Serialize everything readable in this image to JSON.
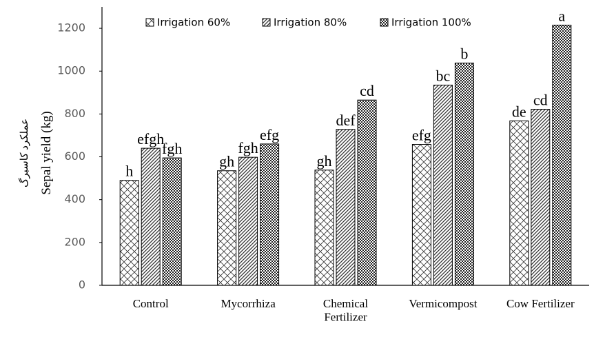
{
  "chart_data": {
    "type": "bar",
    "y_label": [
      "عملکرد کاسبرگ",
      "Sepal yield (kg)"
    ],
    "categories": [
      "Control",
      "Mycorrhiza",
      "Chemical\nFertilizer",
      "Vermicompost",
      "Cow Fertilizer"
    ],
    "series": [
      {
        "name": "Irrigation 60%",
        "values": [
          490,
          535,
          538,
          658,
          768
        ],
        "letters": [
          "h",
          "gh",
          "gh",
          "efg",
          "de"
        ]
      },
      {
        "name": "Irrigation 80%",
        "values": [
          640,
          598,
          728,
          935,
          822
        ],
        "letters": [
          "efgh",
          "fgh",
          "def",
          "bc",
          "cd"
        ]
      },
      {
        "name": "Irrigation 100%",
        "values": [
          595,
          660,
          865,
          1038,
          1215
        ],
        "letters": [
          "fgh",
          "efg",
          "cd",
          "b",
          "a"
        ]
      }
    ],
    "ylim": [
      0,
      1300
    ],
    "yticks": [
      0,
      200,
      400,
      600,
      800,
      1000,
      1200
    ]
  }
}
